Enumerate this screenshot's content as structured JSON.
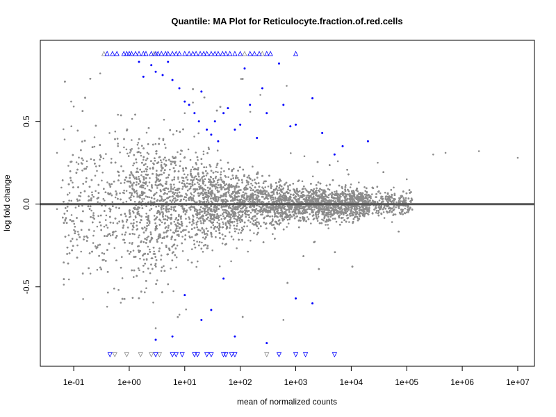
{
  "chart_data": {
    "type": "scatter",
    "title": "Quantile: MA Plot for Reticulocyte.fraction.of.red.cells",
    "xlabel": "mean of normalized counts",
    "ylabel": "log fold change",
    "x_scale": "log10",
    "x_ticks": [
      "1e-01",
      "1e+00",
      "1e+01",
      "1e+02",
      "1e+03",
      "1e+04",
      "1e+05",
      "1e+06",
      "1e+07"
    ],
    "x_tick_values": [
      0.1,
      1,
      10,
      100,
      1000,
      10000,
      100000,
      1000000,
      10000000
    ],
    "y_ticks": [
      "-0.5",
      "0.0",
      "0.5"
    ],
    "y_tick_values": [
      -0.5,
      0.0,
      0.5
    ],
    "xlim": [
      0.025,
      20000000
    ],
    "ylim": [
      -0.98,
      0.99
    ],
    "reference_line": 0,
    "colors": {
      "nonsignificant": "#8c8c8c",
      "significant": "#0000ff",
      "reference_line": "#555555"
    },
    "series": [
      {
        "kind": "nonsignificant points",
        "note": "Dense cloud of ~12000 gray points; funnel shape wide at low counts, narrow at high counts",
        "density_profile": [
          {
            "x": 0.1,
            "y_spread": 0.25
          },
          {
            "x": 1,
            "y_spread": 0.25
          },
          {
            "x": 10,
            "y_spread": 0.18
          },
          {
            "x": 100,
            "y_spread": 0.1
          },
          {
            "x": 1000,
            "y_spread": 0.06
          },
          {
            "x": 10000,
            "y_spread": 0.05
          },
          {
            "x": 100000,
            "y_spread": 0.04
          }
        ],
        "sample_points": [
          {
            "x": 0.05,
            "y": 0.31
          },
          {
            "x": 0.05,
            "y": -0.03
          },
          {
            "x": 0.06,
            "y": 0.1
          },
          {
            "x": 0.07,
            "y": -0.1
          },
          {
            "x": 0.09,
            "y": 0.62
          },
          {
            "x": 0.1,
            "y": 0.59
          },
          {
            "x": 2000000,
            "y": 0.32
          },
          {
            "x": 300000,
            "y": 0.3
          },
          {
            "x": 500000,
            "y": 0.31
          },
          {
            "x": 10000000,
            "y": 0.28
          },
          {
            "x": 30000,
            "y": 0.25
          },
          {
            "x": 100000,
            "y": 0.15
          },
          {
            "x": 0.3,
            "y": 0.79
          },
          {
            "x": 0.4,
            "y": -0.62
          },
          {
            "x": 3,
            "y": -0.75
          },
          {
            "x": 600,
            "y": -0.7
          },
          {
            "x": 2000,
            "y": -0.6
          },
          {
            "x": 50000,
            "y": 0.04
          },
          {
            "x": 10,
            "y": 0.55
          },
          {
            "x": 0.2,
            "y": -0.42
          }
        ]
      },
      {
        "kind": "significant points",
        "note": "Blue points concentrated in the upper-left region with positive log fold change",
        "points": [
          {
            "x": 1.5,
            "y": 0.86
          },
          {
            "x": 1.8,
            "y": 0.77
          },
          {
            "x": 2.5,
            "y": 0.84
          },
          {
            "x": 3,
            "y": 0.8
          },
          {
            "x": 4,
            "y": 0.78
          },
          {
            "x": 5,
            "y": 0.86
          },
          {
            "x": 6,
            "y": 0.75
          },
          {
            "x": 8,
            "y": 0.7
          },
          {
            "x": 10,
            "y": 0.62
          },
          {
            "x": 12,
            "y": 0.6
          },
          {
            "x": 15,
            "y": 0.55
          },
          {
            "x": 18,
            "y": 0.5
          },
          {
            "x": 20,
            "y": 0.68
          },
          {
            "x": 25,
            "y": 0.45
          },
          {
            "x": 30,
            "y": 0.42
          },
          {
            "x": 35,
            "y": 0.5
          },
          {
            "x": 40,
            "y": 0.38
          },
          {
            "x": 50,
            "y": 0.55
          },
          {
            "x": 60,
            "y": 0.58
          },
          {
            "x": 80,
            "y": 0.45
          },
          {
            "x": 100,
            "y": 0.48
          },
          {
            "x": 120,
            "y": 0.82
          },
          {
            "x": 150,
            "y": 0.6
          },
          {
            "x": 200,
            "y": 0.4
          },
          {
            "x": 250,
            "y": 0.7
          },
          {
            "x": 300,
            "y": 0.55
          },
          {
            "x": 500,
            "y": 0.85
          },
          {
            "x": 600,
            "y": 0.6
          },
          {
            "x": 800,
            "y": 0.47
          },
          {
            "x": 1000,
            "y": 0.48
          },
          {
            "x": 2000,
            "y": 0.64
          },
          {
            "x": 3000,
            "y": 0.43
          },
          {
            "x": 5000,
            "y": 0.3
          },
          {
            "x": 7000,
            "y": 0.35
          },
          {
            "x": 20000,
            "y": 0.38
          },
          {
            "x": 3,
            "y": -0.82
          },
          {
            "x": 6,
            "y": -0.8
          },
          {
            "x": 10,
            "y": -0.55
          },
          {
            "x": 20,
            "y": -0.7
          },
          {
            "x": 30,
            "y": -0.64
          },
          {
            "x": 50,
            "y": -0.45
          },
          {
            "x": 80,
            "y": -0.8
          },
          {
            "x": 300,
            "y": -0.84
          },
          {
            "x": 1000,
            "y": -0.57
          },
          {
            "x": 2000,
            "y": -0.6
          }
        ]
      },
      {
        "kind": "clipped at top (triangles)",
        "y": 0.91,
        "x_values_significant": [
          0.4,
          0.5,
          0.6,
          0.8,
          0.9,
          1.0,
          1.1,
          1.3,
          1.5,
          1.8,
          2.0,
          2.5,
          3.0,
          3.3,
          3.8,
          4.5,
          5,
          6,
          7,
          8,
          10,
          12,
          14,
          16,
          19,
          22,
          25,
          30,
          35,
          40,
          48,
          55,
          65,
          80,
          100,
          150,
          180,
          220,
          300,
          350,
          1000
        ],
        "x_values_nonsignificant": [
          0.35,
          2.8,
          120,
          250
        ]
      },
      {
        "kind": "clipped at bottom (triangles)",
        "y": -0.91,
        "x_values_significant": [
          0.45,
          3,
          6,
          7,
          9,
          15,
          17,
          25,
          30,
          50,
          55,
          70,
          80,
          500,
          1000,
          1500,
          5000
        ],
        "x_values_nonsignificant": [
          0.55,
          0.9,
          1.6,
          2.5,
          3.5,
          300
        ]
      }
    ]
  }
}
